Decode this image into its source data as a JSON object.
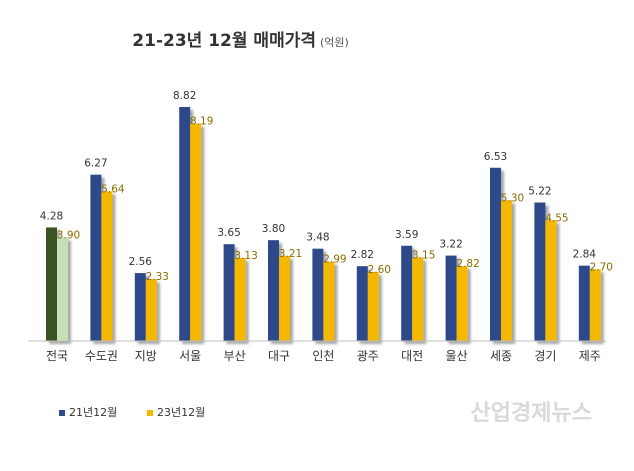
{
  "chart_data": {
    "type": "bar",
    "title": "21-23년 12월 매매가격",
    "unit": "(억원)",
    "categories": [
      "전국",
      "수도권",
      "지방",
      "서울",
      "부산",
      "대구",
      "인천",
      "광주",
      "대전",
      "울산",
      "세종",
      "경기",
      "제주"
    ],
    "series": [
      {
        "name": "21년12월",
        "values": [
          4.28,
          6.27,
          2.56,
          8.82,
          3.65,
          3.8,
          3.48,
          2.82,
          3.59,
          3.22,
          6.53,
          5.22,
          2.84
        ]
      },
      {
        "name": "23년12월",
        "values": [
          3.9,
          5.64,
          2.33,
          8.19,
          3.13,
          3.21,
          2.99,
          2.6,
          3.15,
          2.82,
          5.3,
          4.55,
          2.7
        ]
      }
    ],
    "value_labels_a": [
      "4.28",
      "6.27",
      "2.56",
      "8.82",
      "3.65",
      "3.80",
      "3.48",
      "2.82",
      "3.59",
      "3.22",
      "6.53",
      "5.22",
      "2.84"
    ],
    "value_labels_b": [
      "3.90",
      "5.64",
      "2.33",
      "8.19",
      "3.13",
      "3.21",
      "2.99",
      "2.60",
      "3.15",
      "2.82",
      "5.30",
      "4.55",
      "2.70"
    ],
    "highlight_category_index": 0,
    "ylim": [
      0,
      9
    ],
    "grid": false,
    "legend_position": "bottom-left",
    "xlabel": "",
    "ylabel": ""
  },
  "colors": {
    "series_a": "#2f4a8a",
    "series_b": "#f5b800",
    "highlight_a": "#3b5323",
    "highlight_b": "#c5e0b4",
    "axis": "#bfbfbf"
  },
  "watermark": "산업경제뉴스"
}
